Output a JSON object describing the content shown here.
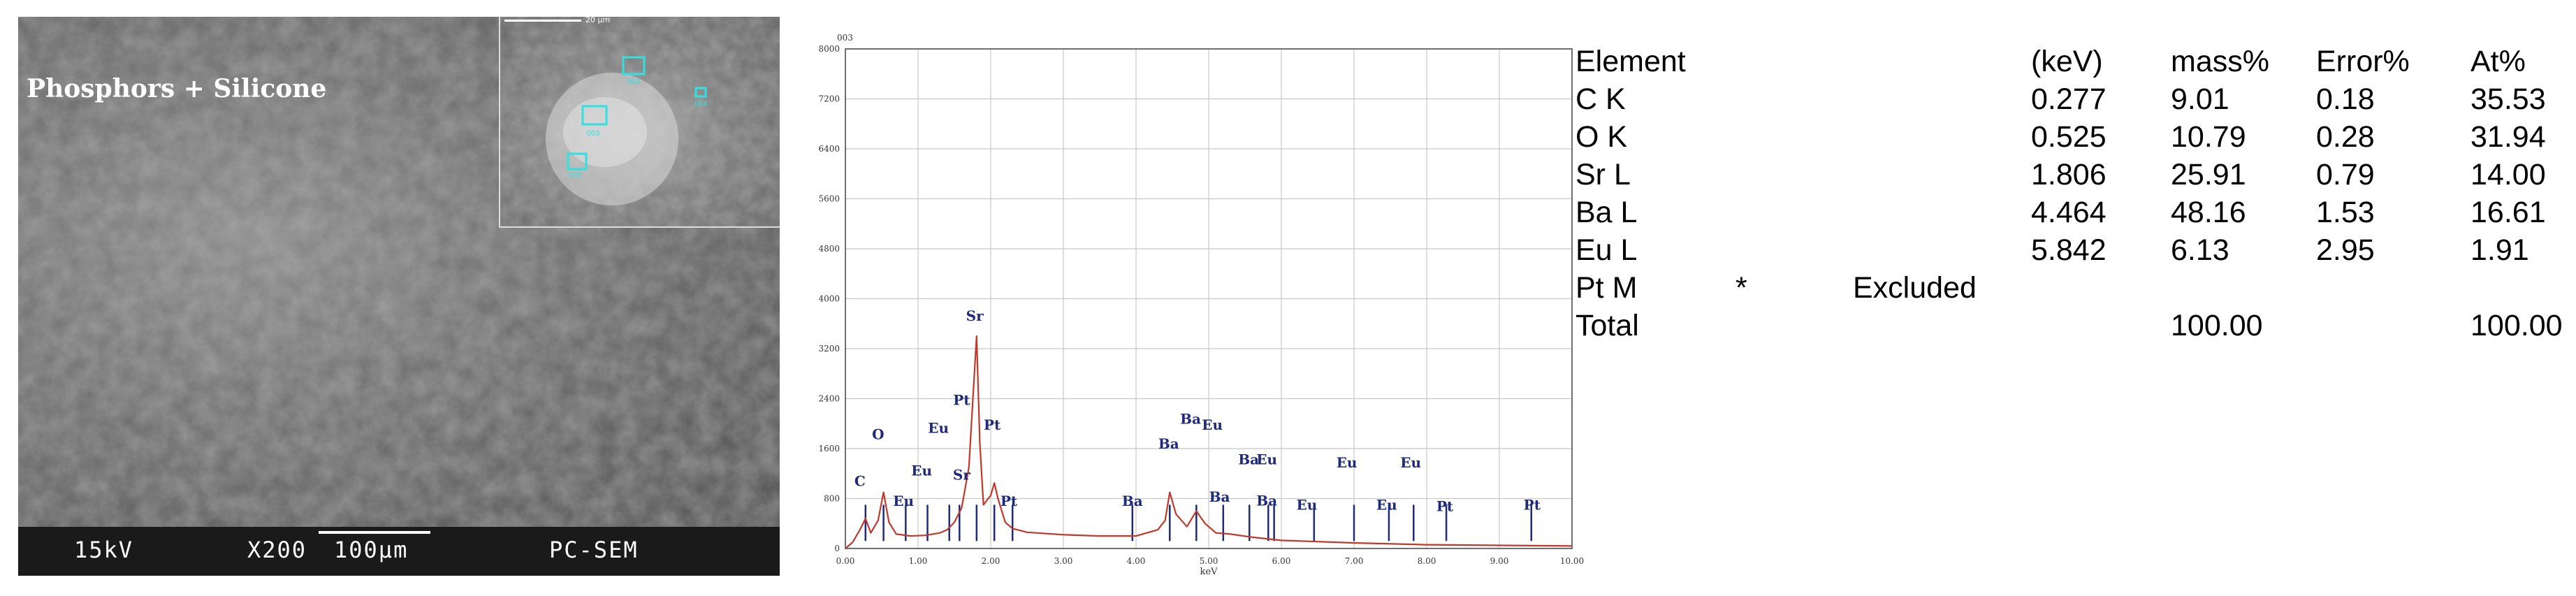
{
  "sem": {
    "label": "Phosphors + Silicone",
    "kv": "15kV",
    "mag": "X200",
    "scale": "100μm",
    "mode": "PC-SEM",
    "inset_scale": "20 μm",
    "inset_markers": [
      "002",
      "003",
      "005",
      "004"
    ]
  },
  "chart_data": {
    "type": "line",
    "title": "003",
    "xlabel": "keV",
    "ylabel": "",
    "xlim": [
      0.0,
      10.0
    ],
    "ylim": [
      0,
      8000
    ],
    "x_ticks": [
      "0.00",
      "1.00",
      "2.00",
      "3.00",
      "4.00",
      "5.00",
      "6.00",
      "7.00",
      "8.00",
      "9.00",
      "10.00"
    ],
    "y_ticks": [
      "0",
      "800",
      "1600",
      "2400",
      "3200",
      "4000",
      "4800",
      "5600",
      "6400",
      "7200",
      "8000"
    ],
    "grid": true,
    "series": [
      {
        "color": "#c0392b",
        "x": [
          0.0,
          0.1,
          0.2,
          0.277,
          0.35,
          0.45,
          0.525,
          0.6,
          0.7,
          0.9,
          1.1,
          1.3,
          1.4,
          1.5,
          1.6,
          1.7,
          1.75,
          1.806,
          1.85,
          1.9,
          2.0,
          2.05,
          2.1,
          2.2,
          2.3,
          2.5,
          3.0,
          3.5,
          4.0,
          4.3,
          4.4,
          4.464,
          4.55,
          4.7,
          4.83,
          4.95,
          5.1,
          5.3,
          5.6,
          6.0,
          6.5,
          7.0,
          8.0,
          9.0,
          10.0
        ],
        "y": [
          0,
          100,
          300,
          480,
          250,
          450,
          900,
          420,
          230,
          200,
          210,
          250,
          300,
          420,
          650,
          1300,
          2300,
          3400,
          1700,
          700,
          850,
          1050,
          800,
          420,
          320,
          260,
          220,
          200,
          200,
          300,
          450,
          900,
          550,
          350,
          600,
          400,
          250,
          230,
          180,
          130,
          110,
          90,
          60,
          50,
          40
        ]
      }
    ],
    "peak_labels": [
      {
        "text": "C",
        "x": 0.2,
        "y": 1000
      },
      {
        "text": "O",
        "x": 0.45,
        "y": 1750
      },
      {
        "text": "Eu",
        "x": 0.8,
        "y": 680
      },
      {
        "text": "Eu",
        "x": 1.05,
        "y": 1170
      },
      {
        "text": "Eu",
        "x": 1.28,
        "y": 1850
      },
      {
        "text": "Sr",
        "x": 1.6,
        "y": 1100
      },
      {
        "text": "Pt",
        "x": 1.6,
        "y": 2300
      },
      {
        "text": "Sr",
        "x": 1.78,
        "y": 3650
      },
      {
        "text": "Pt",
        "x": 2.02,
        "y": 1900
      },
      {
        "text": "Pt",
        "x": 2.25,
        "y": 680
      },
      {
        "text": "Ba",
        "x": 3.95,
        "y": 680
      },
      {
        "text": "Ba",
        "x": 4.45,
        "y": 1600
      },
      {
        "text": "Ba",
        "x": 4.75,
        "y": 2000
      },
      {
        "text": "Eu",
        "x": 5.05,
        "y": 1900
      },
      {
        "text": "Ba",
        "x": 5.15,
        "y": 750
      },
      {
        "text": "Ba",
        "x": 5.55,
        "y": 1350
      },
      {
        "text": "Eu",
        "x": 5.8,
        "y": 1350
      },
      {
        "text": "Ba",
        "x": 5.8,
        "y": 690
      },
      {
        "text": "Eu",
        "x": 6.35,
        "y": 620
      },
      {
        "text": "Eu",
        "x": 6.9,
        "y": 1300
      },
      {
        "text": "Eu",
        "x": 7.45,
        "y": 620
      },
      {
        "text": "Eu",
        "x": 7.78,
        "y": 1300
      },
      {
        "text": "Pt",
        "x": 8.25,
        "y": 600
      },
      {
        "text": "Pt",
        "x": 9.45,
        "y": 620
      }
    ],
    "marker_lines": [
      0.277,
      0.525,
      0.83,
      1.13,
      1.43,
      1.57,
      1.806,
      2.05,
      2.3,
      3.95,
      4.464,
      4.83,
      5.2,
      5.56,
      5.82,
      5.9,
      6.45,
      7.0,
      7.48,
      7.82,
      8.27,
      9.44
    ]
  },
  "table": {
    "headers": [
      "Element",
      "(keV)",
      "mass%",
      "Error%",
      "At%"
    ],
    "rows": [
      {
        "element": "C  K",
        "star": "",
        "note": "",
        "kev": "0.277",
        "mass": "9.01",
        "error": "0.18",
        "at": "35.53"
      },
      {
        "element": "O  K",
        "star": "",
        "note": "",
        "kev": "0.525",
        "mass": "10.79",
        "error": "0.28",
        "at": "31.94"
      },
      {
        "element": "Sr L",
        "star": "",
        "note": "",
        "kev": "1.806",
        "mass": "25.91",
        "error": "0.79",
        "at": "14.00"
      },
      {
        "element": "Ba L",
        "star": "",
        "note": "",
        "kev": "4.464",
        "mass": "48.16",
        "error": "1.53",
        "at": "16.61"
      },
      {
        "element": "Eu L",
        "star": "",
        "note": "",
        "kev": "5.842",
        "mass": "6.13",
        "error": "2.95",
        "at": "1.91"
      },
      {
        "element": "Pt M",
        "star": "*",
        "note": "Excluded",
        "kev": "",
        "mass": "",
        "error": "",
        "at": ""
      },
      {
        "element": "Total",
        "star": "",
        "note": "",
        "kev": "",
        "mass": "100.00",
        "error": "",
        "at": "100.00"
      }
    ]
  }
}
